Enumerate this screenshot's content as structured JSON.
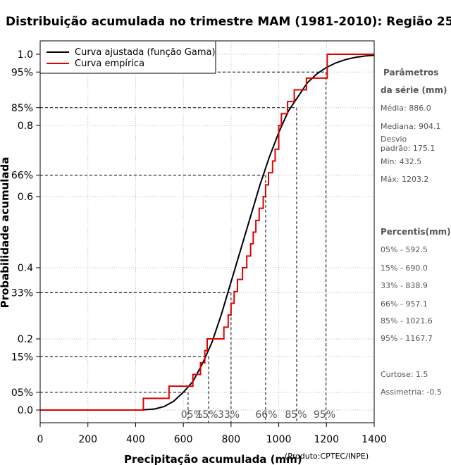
{
  "chart_data": {
    "type": "line",
    "title": "Distribuição acumulada no trimestre MAM (1981-2010): Região 25",
    "xlabel": "Precipitação acumulada (mm)",
    "ylabel": "Probabilidade acumulada",
    "xlim": [
      0,
      1400
    ],
    "ylim": [
      0,
      1
    ],
    "x_ticks": [
      0,
      200,
      400,
      600,
      800,
      1000,
      1200,
      1400
    ],
    "y_ticks": [
      0.0,
      0.2,
      0.4,
      0.6,
      0.8,
      1.0
    ],
    "y_tick_labels": [
      "0.0",
      "0.2",
      "0.4",
      "0.6",
      "0.8",
      "1.0"
    ],
    "y_percent_ticks": [
      {
        "p": 0.05,
        "label": "05%"
      },
      {
        "p": 0.15,
        "label": "15%"
      },
      {
        "p": 0.33,
        "label": "33%"
      },
      {
        "p": 0.66,
        "label": "66%"
      },
      {
        "p": 0.85,
        "label": "85%"
      },
      {
        "p": 0.95,
        "label": "95%"
      }
    ],
    "x_percentile_labels": [
      {
        "x": 636,
        "label": "05%"
      },
      {
        "x": 700,
        "label": "15%"
      },
      {
        "x": 790,
        "label": "33%"
      },
      {
        "x": 948,
        "label": "66%"
      },
      {
        "x": 1072,
        "label": "85%"
      },
      {
        "x": 1192,
        "label": "95%"
      }
    ],
    "guides": [
      {
        "x": 620,
        "p": 0.05
      },
      {
        "x": 706,
        "p": 0.15
      },
      {
        "x": 800,
        "p": 0.33
      },
      {
        "x": 945,
        "p": 0.66
      },
      {
        "x": 1075,
        "p": 0.85
      },
      {
        "x": 1198,
        "p": 0.95
      }
    ],
    "legend": {
      "position": "top-left",
      "entries": [
        {
          "label": "Curva ajustada (função Gama)",
          "color": "#000000"
        },
        {
          "label": "Curva empírica",
          "color": "#e00000"
        }
      ]
    },
    "series": [
      {
        "name": "Curva ajustada (função Gama)",
        "color": "#000000",
        "x": [
          0,
          420,
          480,
          520,
          560,
          600,
          640,
          680,
          720,
          760,
          800,
          840,
          880,
          920,
          960,
          1000,
          1040,
          1080,
          1120,
          1160,
          1200,
          1240,
          1280,
          1320,
          1360,
          1400
        ],
        "y": [
          0.0,
          0.0,
          0.003,
          0.01,
          0.025,
          0.05,
          0.08,
          0.13,
          0.19,
          0.27,
          0.36,
          0.45,
          0.54,
          0.63,
          0.71,
          0.78,
          0.84,
          0.88,
          0.92,
          0.945,
          0.963,
          0.976,
          0.985,
          0.991,
          0.995,
          0.997
        ]
      },
      {
        "name": "Curva empírica",
        "color": "#e00000",
        "type": "step",
        "x": [
          0,
          432.5,
          540,
          640,
          672,
          690,
          700,
          770,
          788,
          800,
          813,
          827,
          848,
          866,
          882,
          893,
          904,
          918,
          935,
          945,
          957,
          974,
          985,
          1000,
          1011,
          1037,
          1065,
          1116,
          1203.2,
          1400
        ],
        "y": [
          0.0,
          0.033,
          0.067,
          0.1,
          0.133,
          0.167,
          0.2,
          0.233,
          0.267,
          0.3,
          0.333,
          0.367,
          0.4,
          0.433,
          0.467,
          0.5,
          0.533,
          0.567,
          0.6,
          0.633,
          0.667,
          0.7,
          0.733,
          0.8,
          0.833,
          0.867,
          0.9,
          0.933,
          1.0,
          1.0
        ]
      }
    ]
  },
  "sidebar": {
    "params_title_1": "Parâmetros",
    "params_title_2": "da série (mm)",
    "media": "Média: 886.0",
    "mediana": "Mediana: 904.1",
    "desvio_1": "Desvio",
    "desvio_2": "padrão: 175.1",
    "min": "Mín: 432.5",
    "max": "Máx: 1203.2",
    "percentis_title": "Percentis(mm)",
    "percentis": [
      "05% - 592.5",
      "15% - 690.0",
      "33% - 838.9",
      "66% - 957.1",
      "85% - 1021.6",
      "95% - 1167.7"
    ],
    "curtose": "Curtose: 1.5",
    "assimetria": "Assimetria: -0.5"
  },
  "credit": "(Produto:CPTEC/INPE)"
}
